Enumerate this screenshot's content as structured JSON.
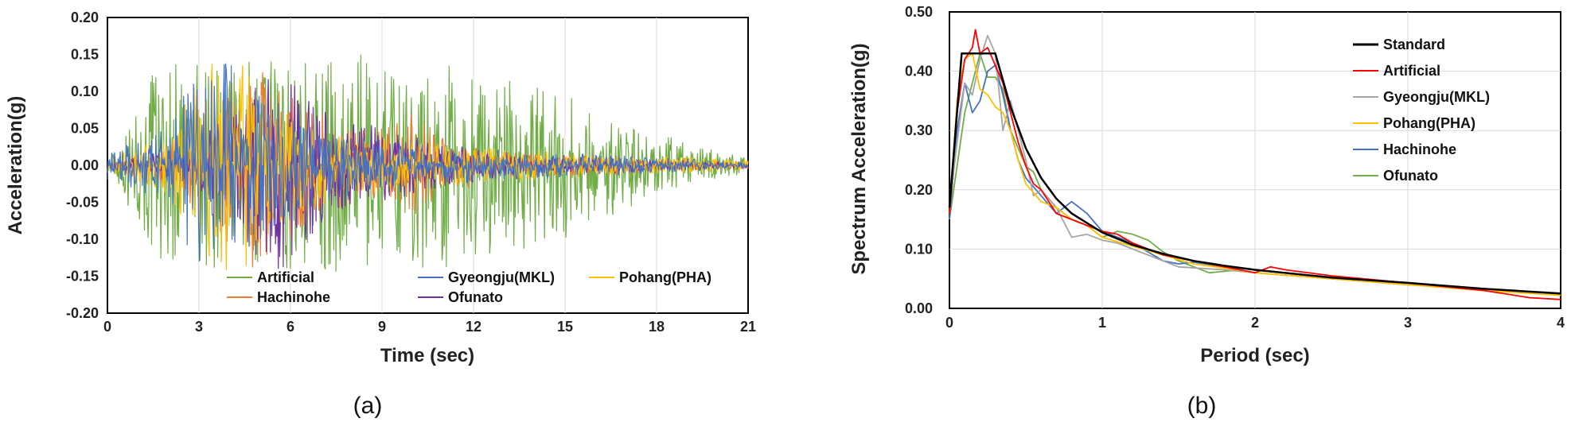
{
  "colors": {
    "Standard": "#000000",
    "Artificial_a": "#70AD47",
    "Gyeongju_a": "#4472C4",
    "Pohang_a": "#FFC000",
    "Hachinohe_a": "#ED7D31",
    "Ofunato_a": "#7030A0",
    "Artificial_b": "#FF0000",
    "Gyeongju_b": "#A5A5A5",
    "Pohang_b": "#FFC000",
    "Hachinohe_b": "#4472C4",
    "Ofunato_b": "#70AD47"
  },
  "chart_data": [
    {
      "id": "a",
      "caption": "(a)",
      "type": "line",
      "xlabel": "Time (sec)",
      "ylabel": "Acceleration(g)",
      "xlim": [
        0,
        21
      ],
      "ylim": [
        -0.2,
        0.2
      ],
      "xticks": [
        0,
        3,
        6,
        9,
        12,
        15,
        18,
        21
      ],
      "xtick_labels": [
        "0",
        "3",
        "6",
        "9",
        "12",
        "15",
        "18",
        "21"
      ],
      "yticks": [
        -0.2,
        -0.15,
        -0.1,
        -0.05,
        0,
        0.05,
        0.1,
        0.15,
        0.2
      ],
      "ytick_labels": [
        "-0.20",
        "-0.15",
        "-0.10",
        "-0.05",
        "0.00",
        "0.05",
        "0.10",
        "0.15",
        "0.20"
      ],
      "grid": "vertical",
      "legend_position": "bottom-inside",
      "series": [
        {
          "name": "Artificial",
          "color_key": "Artificial_a",
          "envelope": [
            [
              0,
              0.01
            ],
            [
              1,
              0.08
            ],
            [
              1.5,
              0.15
            ],
            [
              2.5,
              0.15
            ],
            [
              4,
              0.14
            ],
            [
              7,
              0.15
            ],
            [
              10,
              0.15
            ],
            [
              11,
              0.14
            ],
            [
              13,
              0.12
            ],
            [
              15,
              0.1
            ],
            [
              17,
              0.06
            ],
            [
              19,
              0.03
            ],
            [
              21,
              0.01
            ]
          ],
          "peak_max": 0.15,
          "peak_min": -0.15
        },
        {
          "name": "Gyeongju(MKL)",
          "color_key": "Gyeongju_a",
          "envelope": [
            [
              0,
              0.02
            ],
            [
              2,
              0.05
            ],
            [
              3,
              0.155
            ],
            [
              4,
              0.14
            ],
            [
              5,
              0.1
            ],
            [
              7,
              0.05
            ],
            [
              10,
              0.03
            ],
            [
              13,
              0.02
            ],
            [
              16,
              0.015
            ],
            [
              21,
              0.005
            ]
          ],
          "peak_max": 0.155,
          "peak_min": -0.13
        },
        {
          "name": "Pohang(PHA)",
          "color_key": "Pohang_a",
          "envelope": [
            [
              0,
              0.01
            ],
            [
              2,
              0.04
            ],
            [
              3,
              0.12
            ],
            [
              3.5,
              0.15
            ],
            [
              4.5,
              0.14
            ],
            [
              5.5,
              0.08
            ],
            [
              8,
              0.04
            ],
            [
              12,
              0.025
            ],
            [
              16,
              0.015
            ],
            [
              21,
              0.008
            ]
          ],
          "peak_max": 0.155,
          "peak_min": -0.15
        },
        {
          "name": "Hachinohe",
          "color_key": "Hachinohe_a",
          "envelope": [
            [
              0,
              0.005
            ],
            [
              2,
              0.03
            ],
            [
              3.5,
              0.08
            ],
            [
              4.8,
              0.155
            ],
            [
              6,
              0.1
            ],
            [
              8,
              0.05
            ],
            [
              10,
              0.07
            ],
            [
              11,
              0.04
            ],
            [
              13,
              0.02
            ],
            [
              21,
              0.005
            ]
          ],
          "peak_max": 0.155,
          "peak_min": -0.14
        },
        {
          "name": "Ofunato",
          "color_key": "Ofunato_a",
          "envelope": [
            [
              0,
              0.005
            ],
            [
              2,
              0.02
            ],
            [
              3.5,
              0.05
            ],
            [
              5.5,
              0.155
            ],
            [
              7,
              0.08
            ],
            [
              9,
              0.05
            ],
            [
              11,
              0.03
            ],
            [
              13,
              0.015
            ],
            [
              21,
              0.003
            ]
          ],
          "peak_max": 0.155,
          "peak_min": -0.145
        }
      ]
    },
    {
      "id": "b",
      "caption": "(b)",
      "type": "line",
      "xlabel": "Period (sec)",
      "ylabel": "Spectrum Acceleration(g)",
      "xlim": [
        0,
        4
      ],
      "ylim": [
        0,
        0.5
      ],
      "xticks": [
        0,
        1,
        2,
        3,
        4
      ],
      "xtick_labels": [
        "0",
        "1",
        "2",
        "3",
        "4"
      ],
      "yticks": [
        0,
        0.1,
        0.2,
        0.3,
        0.4,
        0.5
      ],
      "ytick_labels": [
        "0.00",
        "0.10",
        "0.20",
        "0.30",
        "0.40",
        "0.50"
      ],
      "grid": "both",
      "legend_position": "top-right",
      "series": [
        {
          "name": "Standard",
          "color_key": "Standard",
          "width": 2.5,
          "points": [
            [
              0,
              0.17
            ],
            [
              0.08,
              0.43
            ],
            [
              0.3,
              0.43
            ],
            [
              0.4,
              0.34
            ],
            [
              0.5,
              0.27
            ],
            [
              0.6,
              0.22
            ],
            [
              0.7,
              0.185
            ],
            [
              0.8,
              0.16
            ],
            [
              1.0,
              0.128
            ],
            [
              1.2,
              0.107
            ],
            [
              1.4,
              0.092
            ],
            [
              1.6,
              0.08
            ],
            [
              1.8,
              0.072
            ],
            [
              2.0,
              0.065
            ],
            [
              2.5,
              0.052
            ],
            [
              3.0,
              0.043
            ],
            [
              3.5,
              0.033
            ],
            [
              4.0,
              0.025
            ]
          ]
        },
        {
          "name": "Artificial",
          "color_key": "Artificial_b",
          "width": 1.8,
          "points": [
            [
              0,
              0.16
            ],
            [
              0.05,
              0.33
            ],
            [
              0.1,
              0.42
            ],
            [
              0.15,
              0.44
            ],
            [
              0.17,
              0.47
            ],
            [
              0.2,
              0.43
            ],
            [
              0.25,
              0.44
            ],
            [
              0.3,
              0.41
            ],
            [
              0.35,
              0.38
            ],
            [
              0.4,
              0.33
            ],
            [
              0.45,
              0.28
            ],
            [
              0.5,
              0.24
            ],
            [
              0.55,
              0.21
            ],
            [
              0.6,
              0.2
            ],
            [
              0.65,
              0.18
            ],
            [
              0.7,
              0.16
            ],
            [
              0.8,
              0.15
            ],
            [
              0.9,
              0.14
            ],
            [
              1.0,
              0.13
            ],
            [
              1.1,
              0.125
            ],
            [
              1.2,
              0.11
            ],
            [
              1.3,
              0.1
            ],
            [
              1.4,
              0.09
            ],
            [
              1.6,
              0.08
            ],
            [
              1.8,
              0.07
            ],
            [
              2.0,
              0.06
            ],
            [
              2.1,
              0.07
            ],
            [
              2.2,
              0.065
            ],
            [
              2.5,
              0.055
            ],
            [
              3.0,
              0.043
            ],
            [
              3.5,
              0.03
            ],
            [
              3.8,
              0.018
            ],
            [
              4.0,
              0.015
            ]
          ]
        },
        {
          "name": "Gyeongju(MKL)",
          "color_key": "Gyeongju_b",
          "width": 1.8,
          "points": [
            [
              0,
              0.17
            ],
            [
              0.05,
              0.28
            ],
            [
              0.1,
              0.38
            ],
            [
              0.15,
              0.36
            ],
            [
              0.2,
              0.42
            ],
            [
              0.25,
              0.46
            ],
            [
              0.3,
              0.43
            ],
            [
              0.35,
              0.3
            ],
            [
              0.4,
              0.35
            ],
            [
              0.45,
              0.3
            ],
            [
              0.5,
              0.25
            ],
            [
              0.55,
              0.19
            ],
            [
              0.6,
              0.2
            ],
            [
              0.7,
              0.17
            ],
            [
              0.8,
              0.12
            ],
            [
              0.9,
              0.125
            ],
            [
              1.0,
              0.115
            ],
            [
              1.1,
              0.11
            ],
            [
              1.2,
              0.1
            ],
            [
              1.3,
              0.09
            ],
            [
              1.5,
              0.07
            ],
            [
              1.8,
              0.065
            ],
            [
              2.0,
              0.06
            ],
            [
              2.5,
              0.05
            ],
            [
              3.0,
              0.04
            ],
            [
              3.5,
              0.032
            ],
            [
              4.0,
              0.022
            ]
          ]
        },
        {
          "name": "Pohang(PHA)",
          "color_key": "Pohang_b",
          "width": 1.8,
          "points": [
            [
              0,
              0.16
            ],
            [
              0.05,
              0.35
            ],
            [
              0.1,
              0.42
            ],
            [
              0.15,
              0.43
            ],
            [
              0.2,
              0.37
            ],
            [
              0.25,
              0.36
            ],
            [
              0.3,
              0.34
            ],
            [
              0.35,
              0.33
            ],
            [
              0.4,
              0.3
            ],
            [
              0.45,
              0.25
            ],
            [
              0.5,
              0.21
            ],
            [
              0.6,
              0.18
            ],
            [
              0.7,
              0.17
            ],
            [
              0.8,
              0.15
            ],
            [
              0.9,
              0.14
            ],
            [
              1.0,
              0.12
            ],
            [
              1.2,
              0.105
            ],
            [
              1.4,
              0.09
            ],
            [
              1.6,
              0.075
            ],
            [
              1.8,
              0.068
            ],
            [
              2.0,
              0.06
            ],
            [
              2.5,
              0.05
            ],
            [
              3.0,
              0.04
            ],
            [
              3.5,
              0.03
            ],
            [
              4.0,
              0.022
            ]
          ]
        },
        {
          "name": "Hachinohe",
          "color_key": "Hachinohe_b",
          "width": 1.8,
          "points": [
            [
              0,
              0.15
            ],
            [
              0.05,
              0.3
            ],
            [
              0.1,
              0.38
            ],
            [
              0.15,
              0.33
            ],
            [
              0.2,
              0.35
            ],
            [
              0.25,
              0.4
            ],
            [
              0.3,
              0.41
            ],
            [
              0.35,
              0.36
            ],
            [
              0.4,
              0.3
            ],
            [
              0.45,
              0.25
            ],
            [
              0.5,
              0.22
            ],
            [
              0.6,
              0.19
            ],
            [
              0.7,
              0.16
            ],
            [
              0.8,
              0.18
            ],
            [
              0.9,
              0.16
            ],
            [
              1.0,
              0.13
            ],
            [
              1.1,
              0.12
            ],
            [
              1.2,
              0.11
            ],
            [
              1.3,
              0.095
            ],
            [
              1.4,
              0.08
            ],
            [
              1.5,
              0.075
            ],
            [
              1.6,
              0.078
            ],
            [
              1.8,
              0.07
            ],
            [
              2.0,
              0.065
            ],
            [
              2.5,
              0.052
            ],
            [
              3.0,
              0.04
            ],
            [
              3.5,
              0.032
            ],
            [
              4.0,
              0.024
            ]
          ]
        },
        {
          "name": "Ofunato",
          "color_key": "Ofunato_b",
          "width": 1.8,
          "points": [
            [
              0,
              0.15
            ],
            [
              0.05,
              0.24
            ],
            [
              0.1,
              0.33
            ],
            [
              0.15,
              0.38
            ],
            [
              0.2,
              0.43
            ],
            [
              0.25,
              0.39
            ],
            [
              0.3,
              0.39
            ],
            [
              0.35,
              0.37
            ],
            [
              0.4,
              0.3
            ],
            [
              0.45,
              0.27
            ],
            [
              0.5,
              0.24
            ],
            [
              0.55,
              0.23
            ],
            [
              0.6,
              0.2
            ],
            [
              0.7,
              0.17
            ],
            [
              0.8,
              0.15
            ],
            [
              0.9,
              0.14
            ],
            [
              1.0,
              0.12
            ],
            [
              1.1,
              0.13
            ],
            [
              1.2,
              0.125
            ],
            [
              1.3,
              0.115
            ],
            [
              1.4,
              0.095
            ],
            [
              1.5,
              0.08
            ],
            [
              1.7,
              0.06
            ],
            [
              1.9,
              0.065
            ],
            [
              2.0,
              0.06
            ],
            [
              2.5,
              0.05
            ],
            [
              3.0,
              0.04
            ],
            [
              3.5,
              0.03
            ],
            [
              4.0,
              0.023
            ]
          ]
        }
      ]
    }
  ]
}
